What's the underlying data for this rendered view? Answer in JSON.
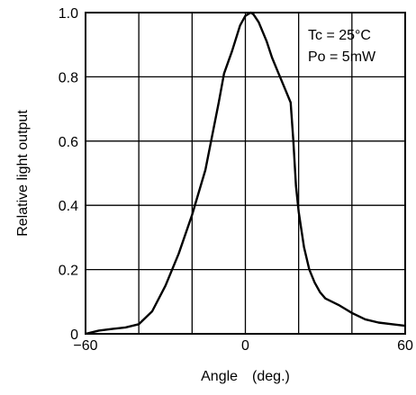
{
  "chart_data": {
    "type": "line",
    "xlabel": "Angle　(deg.)",
    "ylabel": "Relative light output",
    "xlim": [
      -60,
      60
    ],
    "ylim": [
      0,
      1.0
    ],
    "x_ticks": [
      "−60",
      "0",
      "60"
    ],
    "y_ticks": [
      "0",
      "0.2",
      "0.4",
      "0.6",
      "0.8",
      "1.0"
    ],
    "grid": true,
    "annotations": [
      "Tc = 25°C",
      "Po = 5mW"
    ],
    "series": [
      {
        "x": [
          -60,
          -55,
          -50,
          -45,
          -40,
          -35,
          -30,
          -25,
          -20,
          -15,
          -10,
          -8,
          -5,
          -2,
          0,
          2,
          3,
          5,
          8,
          10,
          12,
          15,
          17,
          18,
          19,
          20,
          22,
          24,
          26,
          28,
          30,
          35,
          40,
          45,
          50,
          55,
          60
        ],
        "y": [
          0.0,
          0.01,
          0.015,
          0.02,
          0.03,
          0.07,
          0.15,
          0.25,
          0.37,
          0.51,
          0.72,
          0.81,
          0.88,
          0.96,
          0.99,
          1.0,
          0.995,
          0.97,
          0.91,
          0.86,
          0.82,
          0.76,
          0.72,
          0.6,
          0.46,
          0.38,
          0.27,
          0.2,
          0.16,
          0.13,
          0.11,
          0.09,
          0.065,
          0.045,
          0.035,
          0.03,
          0.025
        ]
      }
    ]
  }
}
